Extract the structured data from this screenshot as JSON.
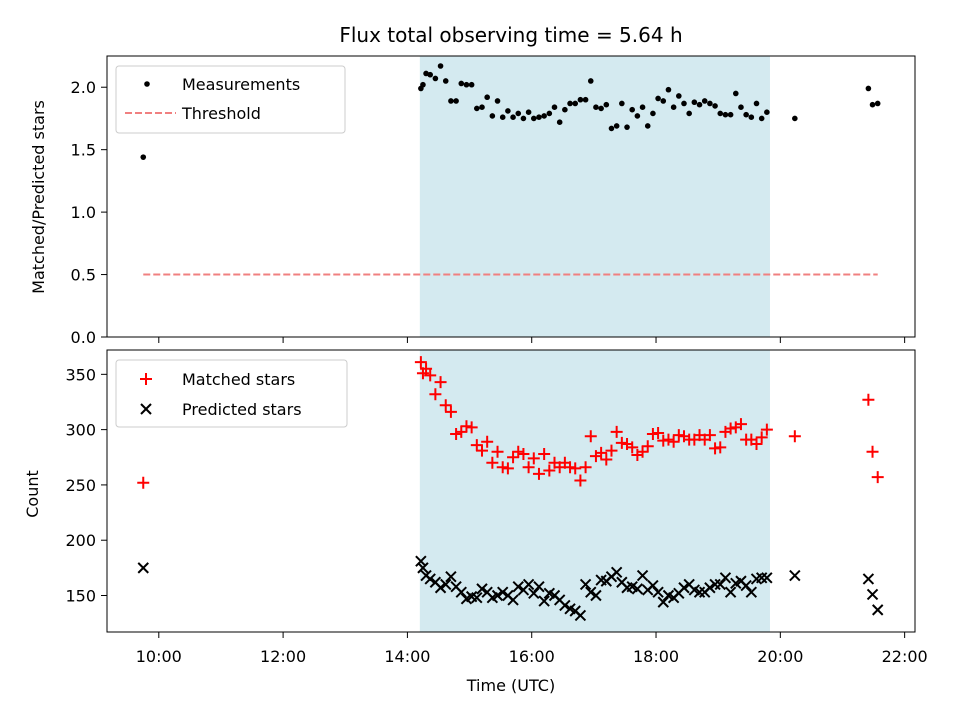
{
  "chart_data": [
    {
      "type": "scatter",
      "title": "Flux total observing time = 5.64 h",
      "ylabel": "Matched/Predicted stars",
      "xlim": [
        "09:10",
        "22:10"
      ],
      "ylim": [
        0,
        2.25
      ],
      "yticks": [
        "0.0",
        "0.5",
        "1.0",
        "1.5",
        "2.0"
      ],
      "shaded_interval": [
        "14:12",
        "19:50"
      ],
      "shaded_color": "#d4eaf0",
      "legend_position": "top-left",
      "series": [
        {
          "name": "Measurements",
          "marker": "dot",
          "color": "#000000",
          "x": [
            "09:45",
            "14:13",
            "14:15",
            "14:18",
            "14:22",
            "14:27",
            "14:32",
            "14:37",
            "14:42",
            "14:47",
            "14:52",
            "14:57",
            "15:02",
            "15:07",
            "15:12",
            "15:17",
            "15:22",
            "15:27",
            "15:32",
            "15:37",
            "15:42",
            "15:47",
            "15:52",
            "15:57",
            "16:02",
            "16:07",
            "16:12",
            "16:17",
            "16:22",
            "16:27",
            "16:32",
            "16:37",
            "16:42",
            "16:47",
            "16:52",
            "16:57",
            "17:02",
            "17:07",
            "17:12",
            "17:17",
            "17:22",
            "17:27",
            "17:32",
            "17:37",
            "17:42",
            "17:47",
            "17:52",
            "17:57",
            "18:02",
            "18:07",
            "18:12",
            "18:17",
            "18:22",
            "18:27",
            "18:32",
            "18:37",
            "18:42",
            "18:47",
            "18:52",
            "18:57",
            "19:02",
            "19:07",
            "19:12",
            "19:17",
            "19:22",
            "19:27",
            "19:32",
            "19:37",
            "19:42",
            "19:47",
            "20:14",
            "21:25",
            "21:29",
            "21:34"
          ],
          "y": [
            1.44,
            1.99,
            2.02,
            2.11,
            2.1,
            2.07,
            2.17,
            2.05,
            1.89,
            1.89,
            2.03,
            2.02,
            2.02,
            1.83,
            1.84,
            1.92,
            1.77,
            1.89,
            1.76,
            1.81,
            1.76,
            1.79,
            1.75,
            1.8,
            1.75,
            1.76,
            1.77,
            1.79,
            1.84,
            1.72,
            1.82,
            1.87,
            1.87,
            1.9,
            1.9,
            2.05,
            1.84,
            1.83,
            1.86,
            1.67,
            1.69,
            1.87,
            1.68,
            1.82,
            1.77,
            1.84,
            1.69,
            1.79,
            1.91,
            1.89,
            1.98,
            1.84,
            1.93,
            1.87,
            1.79,
            1.88,
            1.86,
            1.89,
            1.87,
            1.85,
            1.79,
            1.78,
            1.78,
            1.95,
            1.84,
            1.78,
            1.76,
            1.87,
            1.75,
            1.8,
            1.75,
            1.99,
            1.86,
            1.87
          ]
        },
        {
          "name": "Threshold",
          "marker": "dashed-line",
          "color": "#f08080",
          "x": [
            "09:45",
            "21:34"
          ],
          "y": [
            0.5,
            0.5
          ]
        }
      ]
    },
    {
      "type": "scatter",
      "xlabel": "Time (UTC)",
      "ylabel": "Count",
      "xlim": [
        "09:10",
        "22:10"
      ],
      "ylim": [
        117,
        372
      ],
      "xticks": [
        "10:00",
        "12:00",
        "14:00",
        "16:00",
        "18:00",
        "20:00",
        "22:00"
      ],
      "yticks": [
        "150",
        "200",
        "250",
        "300",
        "350"
      ],
      "shaded_interval": [
        "14:12",
        "19:50"
      ],
      "shaded_color": "#d4eaf0",
      "legend_position": "top-left",
      "series": [
        {
          "name": "Matched stars",
          "marker": "plus",
          "color": "#ff0000",
          "x": [
            "09:45",
            "14:13",
            "14:15",
            "14:18",
            "14:22",
            "14:27",
            "14:32",
            "14:37",
            "14:42",
            "14:47",
            "14:52",
            "14:57",
            "15:02",
            "15:07",
            "15:12",
            "15:17",
            "15:22",
            "15:27",
            "15:32",
            "15:37",
            "15:42",
            "15:47",
            "15:52",
            "15:57",
            "16:02",
            "16:07",
            "16:12",
            "16:17",
            "16:22",
            "16:27",
            "16:32",
            "16:37",
            "16:42",
            "16:47",
            "16:52",
            "16:57",
            "17:02",
            "17:07",
            "17:12",
            "17:17",
            "17:22",
            "17:27",
            "17:32",
            "17:37",
            "17:42",
            "17:47",
            "17:52",
            "17:57",
            "18:02",
            "18:07",
            "18:12",
            "18:17",
            "18:22",
            "18:27",
            "18:32",
            "18:37",
            "18:42",
            "18:47",
            "18:52",
            "18:57",
            "19:02",
            "19:07",
            "19:12",
            "19:17",
            "19:22",
            "19:27",
            "19:32",
            "19:37",
            "19:42",
            "19:47",
            "20:14",
            "21:25",
            "21:29",
            "21:34"
          ],
          "y": [
            252,
            361,
            351,
            355,
            349,
            332,
            343,
            322,
            316,
            296,
            298,
            303,
            302,
            286,
            281,
            289,
            270,
            280,
            266,
            265,
            275,
            280,
            278,
            266,
            274,
            260,
            278,
            263,
            270,
            266,
            270,
            266,
            265,
            254,
            266,
            294,
            276,
            279,
            273,
            281,
            298,
            288,
            287,
            284,
            277,
            280,
            285,
            296,
            297,
            290,
            291,
            289,
            295,
            294,
            291,
            291,
            295,
            291,
            295,
            283,
            284,
            298,
            301,
            302,
            305,
            291,
            291,
            287,
            293,
            300,
            294,
            327,
            280,
            257
          ]
        },
        {
          "name": "Predicted stars",
          "marker": "x",
          "color": "#000000",
          "x": [
            "09:45",
            "14:13",
            "14:15",
            "14:18",
            "14:22",
            "14:27",
            "14:32",
            "14:37",
            "14:42",
            "14:47",
            "14:52",
            "14:57",
            "15:02",
            "15:07",
            "15:12",
            "15:17",
            "15:22",
            "15:27",
            "15:32",
            "15:37",
            "15:42",
            "15:47",
            "15:52",
            "15:57",
            "16:02",
            "16:07",
            "16:12",
            "16:17",
            "16:22",
            "16:27",
            "16:32",
            "16:37",
            "16:42",
            "16:47",
            "16:52",
            "16:57",
            "17:02",
            "17:07",
            "17:12",
            "17:17",
            "17:22",
            "17:27",
            "17:32",
            "17:37",
            "17:42",
            "17:47",
            "17:52",
            "17:57",
            "18:02",
            "18:07",
            "18:12",
            "18:17",
            "18:22",
            "18:27",
            "18:32",
            "18:37",
            "18:42",
            "18:47",
            "18:52",
            "18:57",
            "19:02",
            "19:07",
            "19:12",
            "19:17",
            "19:22",
            "19:27",
            "19:32",
            "19:37",
            "19:42",
            "19:47",
            "20:14",
            "21:25",
            "21:29",
            "21:34"
          ],
          "y": [
            175,
            181,
            175,
            168,
            165,
            162,
            157,
            160,
            167,
            158,
            153,
            147,
            149,
            148,
            156,
            153,
            148,
            150,
            153,
            150,
            146,
            158,
            155,
            160,
            152,
            158,
            145,
            152,
            150,
            146,
            141,
            138,
            136,
            132,
            160,
            153,
            150,
            164,
            163,
            167,
            171,
            162,
            157,
            158,
            156,
            168,
            155,
            159,
            153,
            144,
            150,
            148,
            152,
            157,
            160,
            155,
            153,
            153,
            157,
            160,
            160,
            166,
            153,
            161,
            163,
            159,
            153,
            165,
            166,
            166,
            168,
            165,
            151,
            137
          ]
        }
      ]
    }
  ]
}
